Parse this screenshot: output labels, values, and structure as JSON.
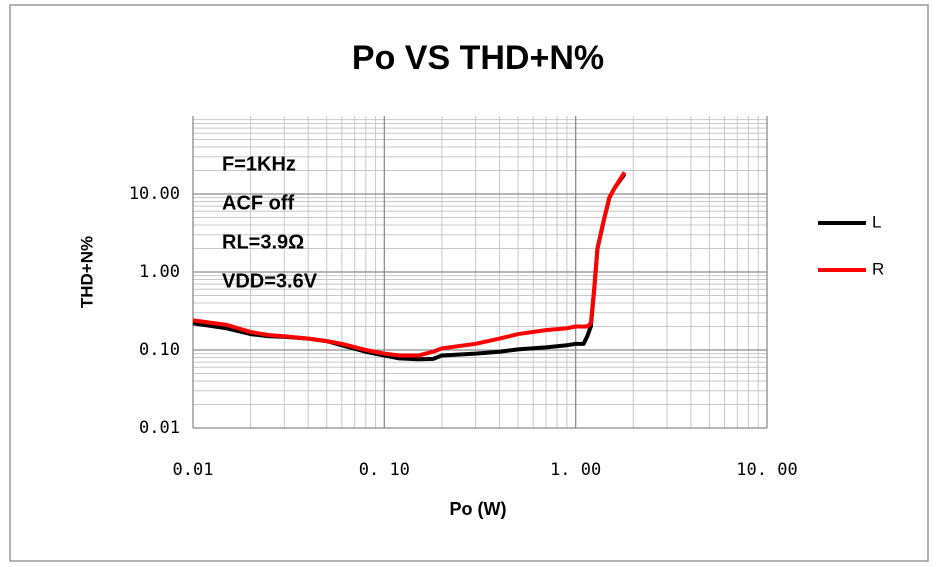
{
  "chart_data": {
    "type": "line",
    "title": "Po VS THD+N%",
    "x_label": "Po  (W)",
    "y_label": "THD+N%",
    "annotations": [
      "F=1KHz",
      "ACF  off",
      "RL=3.9Ω",
      "VDD=3.6V"
    ],
    "x": [
      0.01,
      0.015,
      0.02,
      0.025,
      0.03,
      0.04,
      0.05,
      0.06,
      0.08,
      0.1,
      0.12,
      0.15,
      0.18,
      0.2,
      0.3,
      0.4,
      0.5,
      0.7,
      0.9,
      1.0,
      1.1,
      1.15,
      1.2,
      1.25,
      1.3,
      1.4,
      1.5,
      1.6,
      1.8
    ],
    "series": [
      {
        "name": "L",
        "color": "#000000",
        "values": [
          0.22,
          0.19,
          0.16,
          0.15,
          0.148,
          0.14,
          0.13,
          0.115,
          0.095,
          0.085,
          0.078,
          0.076,
          0.077,
          0.085,
          0.09,
          0.095,
          0.102,
          0.108,
          0.115,
          0.12,
          0.12,
          0.15,
          0.2,
          0.6,
          2.0,
          4.5,
          9,
          12,
          18
        ]
      },
      {
        "name": "R",
        "color": "#ff0000",
        "values": [
          0.24,
          0.21,
          0.17,
          0.155,
          0.15,
          0.14,
          0.13,
          0.12,
          0.1,
          0.09,
          0.085,
          0.085,
          0.095,
          0.105,
          0.12,
          0.14,
          0.16,
          0.18,
          0.19,
          0.2,
          0.2,
          0.2,
          0.22,
          0.6,
          2.0,
          4.5,
          9,
          12,
          19
        ]
      }
    ],
    "xlim": [
      0.01,
      10
    ],
    "xticks": [
      0.01,
      {
        "value": 0.1,
        "label": "0. 10"
      },
      {
        "value": 1,
        "label": "1. 00"
      },
      {
        "value": 10,
        "label": "10. 00"
      }
    ],
    "ylim": [
      0.01,
      100
    ],
    "yticks": [
      0.01,
      {
        "value": 0.1,
        "label": "0.10"
      },
      {
        "value": 1,
        "label": "1.00"
      },
      {
        "value": 10,
        "label": "10.00"
      }
    ],
    "log_x": true,
    "log_y": true,
    "grid": true,
    "minor_grid": true,
    "legend": "right"
  }
}
